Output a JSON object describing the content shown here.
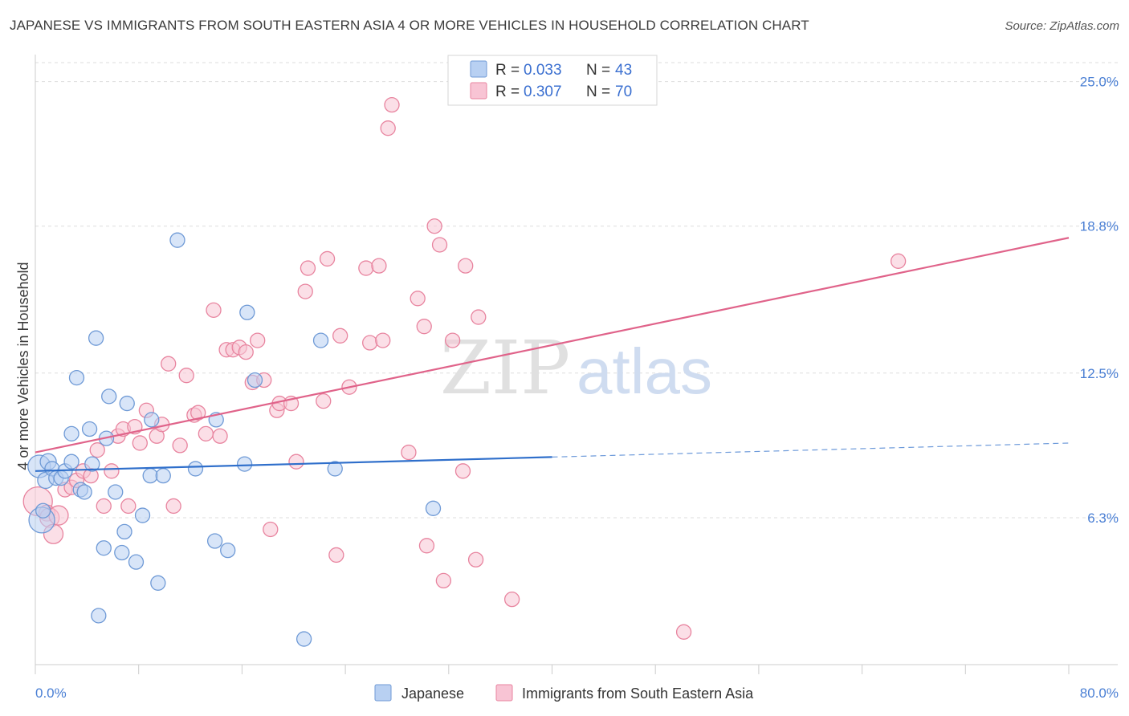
{
  "header": {
    "title": "JAPANESE VS IMMIGRANTS FROM SOUTH EASTERN ASIA 4 OR MORE VEHICLES IN HOUSEHOLD CORRELATION CHART",
    "source": "Source: ZipAtlas.com"
  },
  "watermark": {
    "zip": "ZIP",
    "atlas": "atlas"
  },
  "colors": {
    "japanese_fill": "#b8d0f2",
    "japanese_stroke": "#6f9ad6",
    "japanese_line": "#2f6fcb",
    "sea_fill": "#f8c4d4",
    "sea_stroke": "#e8849f",
    "sea_line": "#e0638a",
    "tick_label": "#4a7fd4",
    "grid": "#dddddd"
  },
  "legend": {
    "row1": {
      "r_label": "R = ",
      "r_value": "0.033",
      "n_label": "N = ",
      "n_value": "43"
    },
    "row2": {
      "r_label": "R = ",
      "r_value": "0.307",
      "n_label": "N = ",
      "n_value": "70"
    }
  },
  "chart_data": {
    "type": "scatter",
    "ylabel": "4 or more Vehicles in Household",
    "xlim": [
      0,
      80
    ],
    "ylim": [
      0,
      26.5
    ],
    "x_tick_labels": {
      "min": "0.0%",
      "max": "80.0%"
    },
    "y_ticks": [
      {
        "value": 25.0,
        "label": "25.0%"
      },
      {
        "value": 18.8,
        "label": "18.8%"
      },
      {
        "value": 12.5,
        "label": "12.5%"
      },
      {
        "value": 6.3,
        "label": "6.3%"
      }
    ],
    "grid": true,
    "legend_position": "top-center",
    "series": [
      {
        "name": "Japanese",
        "r": 0.033,
        "n": 43,
        "trend": {
          "x0": 0,
          "y0": 8.3,
          "x1": 40,
          "y1": 8.9,
          "dashed_to_x": 80,
          "dashed_to_y": 9.5
        },
        "points": [
          [
            0.3,
            8.5,
            14
          ],
          [
            0.5,
            6.2,
            16
          ],
          [
            0.8,
            7.9,
            10
          ],
          [
            1.0,
            8.7,
            10
          ],
          [
            1.3,
            8.4,
            9
          ],
          [
            1.6,
            8.0,
            9
          ],
          [
            2.0,
            8.0,
            9
          ],
          [
            2.3,
            8.3,
            9
          ],
          [
            2.8,
            8.7,
            9
          ],
          [
            2.8,
            9.9,
            9
          ],
          [
            3.2,
            12.3,
            9
          ],
          [
            3.5,
            7.5,
            9
          ],
          [
            3.8,
            7.4,
            9
          ],
          [
            4.2,
            10.1,
            9
          ],
          [
            4.4,
            8.6,
            9
          ],
          [
            4.7,
            14.0,
            9
          ],
          [
            4.9,
            2.1,
            9
          ],
          [
            5.3,
            5.0,
            9
          ],
          [
            5.5,
            9.7,
            9
          ],
          [
            5.7,
            11.5,
            9
          ],
          [
            6.2,
            7.4,
            9
          ],
          [
            6.7,
            4.8,
            9
          ],
          [
            6.9,
            5.7,
            9
          ],
          [
            7.1,
            11.2,
            9
          ],
          [
            7.8,
            4.4,
            9
          ],
          [
            8.3,
            6.4,
            9
          ],
          [
            8.9,
            8.1,
            9
          ],
          [
            9.0,
            10.5,
            9
          ],
          [
            9.5,
            3.5,
            9
          ],
          [
            9.9,
            8.1,
            9
          ],
          [
            11.0,
            18.2,
            9
          ],
          [
            12.4,
            8.4,
            9
          ],
          [
            13.9,
            5.3,
            9
          ],
          [
            14.0,
            10.5,
            9
          ],
          [
            14.9,
            4.9,
            9
          ],
          [
            16.2,
            8.6,
            9
          ],
          [
            16.4,
            15.1,
            9
          ],
          [
            17.0,
            12.2,
            9
          ],
          [
            20.8,
            1.1,
            9
          ],
          [
            22.1,
            13.9,
            9
          ],
          [
            23.2,
            8.4,
            9
          ],
          [
            30.8,
            6.7,
            9
          ],
          [
            0.6,
            6.6,
            9
          ]
        ]
      },
      {
        "name": "Immigrants from South Eastern Asia",
        "r": 0.307,
        "n": 70,
        "trend": {
          "x0": 0,
          "y0": 9.1,
          "x1": 80,
          "y1": 18.3
        },
        "points": [
          [
            0.2,
            7.0,
            18
          ],
          [
            0.9,
            6.5,
            10
          ],
          [
            1.1,
            6.3,
            12
          ],
          [
            1.4,
            5.6,
            12
          ],
          [
            1.8,
            6.4,
            12
          ],
          [
            2.3,
            7.5,
            9
          ],
          [
            2.8,
            7.6,
            9
          ],
          [
            3.2,
            7.9,
            9
          ],
          [
            3.7,
            8.3,
            9
          ],
          [
            4.3,
            8.1,
            9
          ],
          [
            4.8,
            9.2,
            9
          ],
          [
            5.3,
            6.8,
            9
          ],
          [
            5.9,
            8.3,
            9
          ],
          [
            6.4,
            9.8,
            9
          ],
          [
            6.8,
            10.1,
            9
          ],
          [
            7.2,
            6.8,
            9
          ],
          [
            7.7,
            10.2,
            9
          ],
          [
            8.1,
            9.5,
            9
          ],
          [
            8.6,
            10.9,
            9
          ],
          [
            9.4,
            9.8,
            9
          ],
          [
            9.8,
            10.3,
            9
          ],
          [
            10.3,
            12.9,
            9
          ],
          [
            10.7,
            6.8,
            9
          ],
          [
            11.2,
            9.4,
            9
          ],
          [
            11.7,
            12.4,
            9
          ],
          [
            12.3,
            10.7,
            9
          ],
          [
            12.6,
            10.8,
            9
          ],
          [
            13.2,
            9.9,
            9
          ],
          [
            13.8,
            15.2,
            9
          ],
          [
            14.3,
            9.8,
            9
          ],
          [
            14.8,
            13.5,
            9
          ],
          [
            15.3,
            13.5,
            9
          ],
          [
            15.8,
            13.6,
            9
          ],
          [
            16.3,
            13.4,
            9
          ],
          [
            16.8,
            12.1,
            9
          ],
          [
            17.2,
            13.9,
            9
          ],
          [
            17.7,
            12.2,
            9
          ],
          [
            18.2,
            5.8,
            9
          ],
          [
            18.7,
            10.9,
            9
          ],
          [
            18.9,
            11.2,
            9
          ],
          [
            19.8,
            11.2,
            9
          ],
          [
            20.2,
            8.7,
            9
          ],
          [
            20.9,
            16.0,
            9
          ],
          [
            21.1,
            17.0,
            9
          ],
          [
            22.3,
            11.3,
            9
          ],
          [
            22.6,
            17.4,
            9
          ],
          [
            23.3,
            4.7,
            9
          ],
          [
            23.6,
            14.1,
            9
          ],
          [
            24.3,
            11.9,
            9
          ],
          [
            25.6,
            17.0,
            9
          ],
          [
            25.9,
            13.8,
            9
          ],
          [
            26.6,
            17.1,
            9
          ],
          [
            26.9,
            13.9,
            9
          ],
          [
            27.3,
            23.0,
            9
          ],
          [
            27.6,
            24.0,
            9
          ],
          [
            28.9,
            9.1,
            9
          ],
          [
            29.6,
            15.7,
            9
          ],
          [
            30.1,
            14.5,
            9
          ],
          [
            30.3,
            5.1,
            9
          ],
          [
            30.9,
            18.8,
            9
          ],
          [
            31.3,
            18.0,
            9
          ],
          [
            31.6,
            3.6,
            9
          ],
          [
            32.3,
            13.9,
            9
          ],
          [
            33.1,
            8.3,
            9
          ],
          [
            33.3,
            17.1,
            9
          ],
          [
            34.1,
            4.5,
            9
          ],
          [
            34.3,
            14.9,
            9
          ],
          [
            36.9,
            2.8,
            9
          ],
          [
            50.2,
            1.4,
            9
          ],
          [
            66.8,
            17.3,
            9
          ]
        ]
      }
    ]
  },
  "bottom_legend": {
    "series1": "Japanese",
    "series2": "Immigrants from South Eastern Asia"
  }
}
